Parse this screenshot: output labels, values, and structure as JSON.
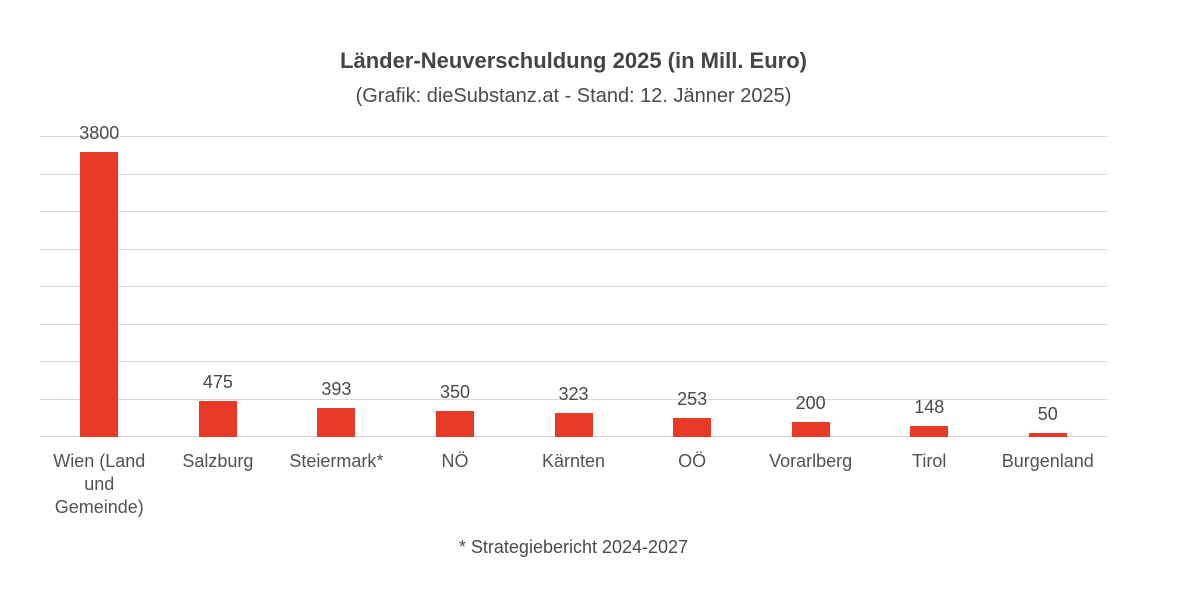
{
  "chart_data": {
    "type": "bar",
    "title": "Länder-Neuverschuldung 2025 (in Mill. Euro)",
    "subtitle": "(Grafik: dieSubstanz.at - Stand: 12. Jänner 2025)",
    "footnote": "* Strategiebericht 2024-2027",
    "categories": [
      "Wien (Land und Gemeinde)",
      "Salzburg",
      "Steiermark*",
      "NÖ",
      "Kärnten",
      "OÖ",
      "Vorarlberg",
      "Tirol",
      "Burgenland"
    ],
    "values": [
      3800,
      475,
      393,
      350,
      323,
      253,
      200,
      148,
      50
    ],
    "xlabel": "",
    "ylabel": "",
    "ylim": [
      0,
      4000
    ],
    "gridline_step": 500,
    "grid": true,
    "legend": false,
    "data_labels": true,
    "bar_color": "#e83a26",
    "gridline_color": "#d8d8d8",
    "text_color": "#4a4a4a"
  }
}
